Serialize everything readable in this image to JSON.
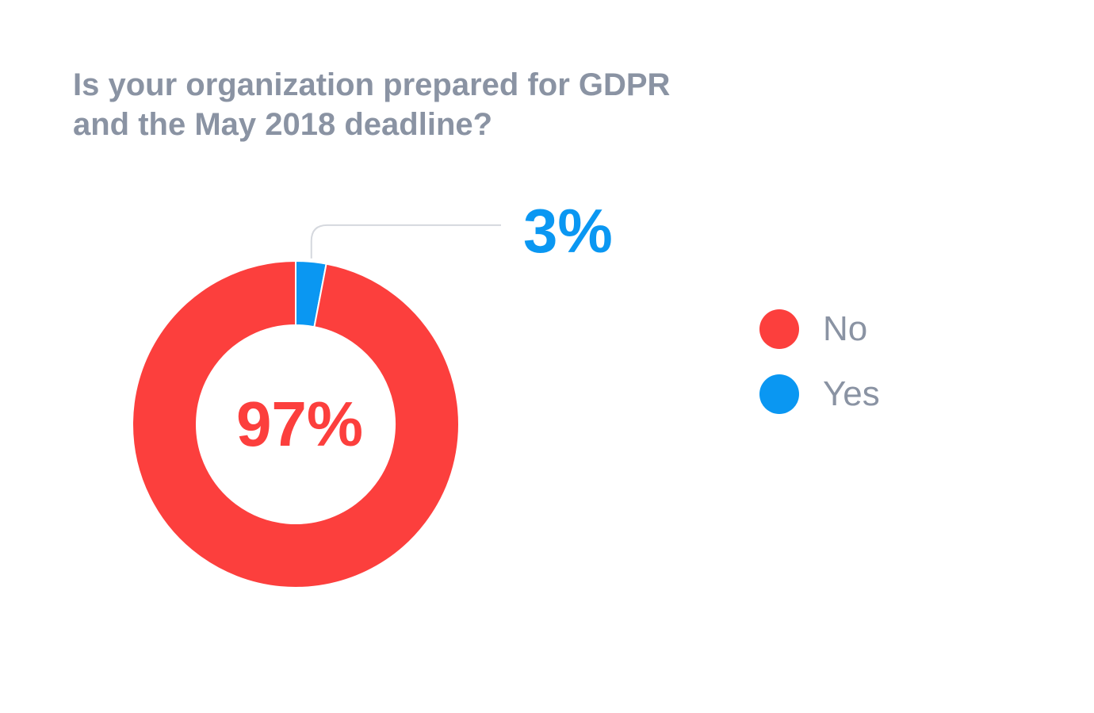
{
  "chart_data": {
    "type": "pie",
    "variant": "donut",
    "title_lines": [
      "Is your organization prepared for GDPR",
      "and the May 2018 deadline?"
    ],
    "slices": [
      {
        "name": "No",
        "value": 97,
        "label": "97%",
        "color": "#fc3f3d"
      },
      {
        "name": "Yes",
        "value": 3,
        "label": "3%",
        "color": "#0a97f2"
      }
    ],
    "legend": {
      "position": "right",
      "items": [
        {
          "label": "No",
          "color": "#fc3f3d"
        },
        {
          "label": "Yes",
          "color": "#0a97f2"
        }
      ]
    }
  }
}
